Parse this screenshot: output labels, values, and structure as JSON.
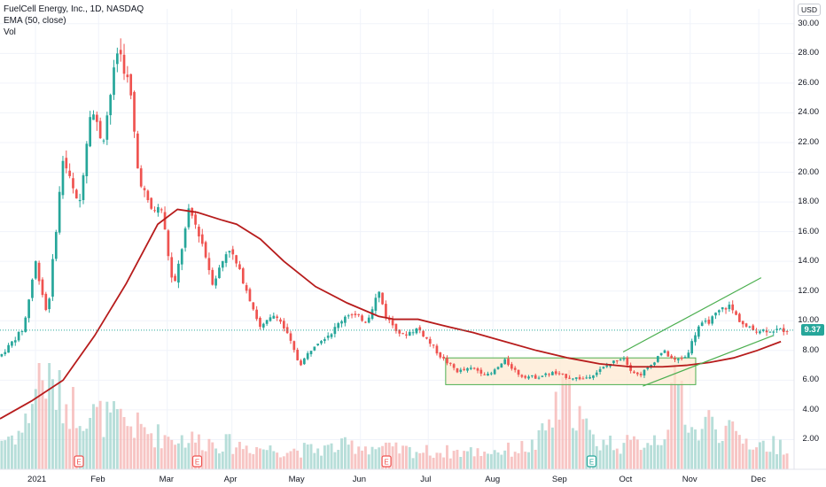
{
  "legend": {
    "symbol": "FuelCell Energy, Inc., 1D, NASDAQ",
    "indicator": "EMA (50, close)",
    "volume": "Vol"
  },
  "currency": "USD",
  "last_price": "9.37",
  "colors": {
    "up": "#26a69a",
    "down": "#ef5350",
    "ema": "#b71c1c",
    "channel": "#4caf50",
    "range_fill": "#fde8cf"
  },
  "chart_data": {
    "type": "candlestick",
    "title": "FuelCell Energy, Inc., 1D, NASDAQ",
    "y_axis": {
      "min": 0,
      "max": 31,
      "ticks": [
        "2.00",
        "4.00",
        "6.00",
        "8.00",
        "10.00",
        "12.00",
        "14.00",
        "16.00",
        "18.00",
        "20.00",
        "22.00",
        "24.00",
        "26.00",
        "28.00",
        "30.00"
      ]
    },
    "x_ticks": [
      {
        "label": "2021",
        "t": 0.045
      },
      {
        "label": "Feb",
        "t": 0.125
      },
      {
        "label": "Mar",
        "t": 0.212
      },
      {
        "label": "Apr",
        "t": 0.294
      },
      {
        "label": "May",
        "t": 0.376
      },
      {
        "label": "Jun",
        "t": 0.457
      },
      {
        "label": "Jul",
        "t": 0.543
      },
      {
        "label": "Aug",
        "t": 0.625
      },
      {
        "label": "Sep",
        "t": 0.71
      },
      {
        "label": "Oct",
        "t": 0.795
      },
      {
        "label": "Nov",
        "t": 0.875
      },
      {
        "label": "Dec",
        "t": 0.962
      }
    ],
    "price_path": [
      [
        0.0,
        7.6
      ],
      [
        0.03,
        9.5
      ],
      [
        0.045,
        14.0
      ],
      [
        0.06,
        10.3
      ],
      [
        0.08,
        21.0
      ],
      [
        0.1,
        17.5
      ],
      [
        0.115,
        24.5
      ],
      [
        0.13,
        22.0
      ],
      [
        0.15,
        28.5
      ],
      [
        0.165,
        25.5
      ],
      [
        0.175,
        20.0
      ],
      [
        0.19,
        17.5
      ],
      [
        0.205,
        17.5
      ],
      [
        0.22,
        12.0
      ],
      [
        0.24,
        17.5
      ],
      [
        0.255,
        15.5
      ],
      [
        0.27,
        12.5
      ],
      [
        0.29,
        15.0
      ],
      [
        0.31,
        12.5
      ],
      [
        0.33,
        9.5
      ],
      [
        0.35,
        10.5
      ],
      [
        0.365,
        9.0
      ],
      [
        0.38,
        7.0
      ],
      [
        0.4,
        8.5
      ],
      [
        0.42,
        9.2
      ],
      [
        0.44,
        10.5
      ],
      [
        0.465,
        10.0
      ],
      [
        0.48,
        12.0
      ],
      [
        0.49,
        10.2
      ],
      [
        0.51,
        9.0
      ],
      [
        0.53,
        9.5
      ],
      [
        0.56,
        7.5
      ],
      [
        0.58,
        6.6
      ],
      [
        0.6,
        6.8
      ],
      [
        0.62,
        6.3
      ],
      [
        0.64,
        7.3
      ],
      [
        0.66,
        6.3
      ],
      [
        0.68,
        6.2
      ],
      [
        0.7,
        6.5
      ],
      [
        0.72,
        6.2
      ],
      [
        0.74,
        6.1
      ],
      [
        0.755,
        6.5
      ],
      [
        0.77,
        7.0
      ],
      [
        0.79,
        7.6
      ],
      [
        0.8,
        6.7
      ],
      [
        0.81,
        6.3
      ],
      [
        0.825,
        7.0
      ],
      [
        0.84,
        8.0
      ],
      [
        0.855,
        7.3
      ],
      [
        0.87,
        7.6
      ],
      [
        0.885,
        9.6
      ],
      [
        0.9,
        10.0
      ],
      [
        0.915,
        10.8
      ],
      [
        0.925,
        11.0
      ],
      [
        0.935,
        10.2
      ],
      [
        0.945,
        9.6
      ],
      [
        0.955,
        9.37
      ]
    ],
    "ema_path": [
      [
        0.0,
        3.4
      ],
      [
        0.04,
        4.6
      ],
      [
        0.08,
        6.0
      ],
      [
        0.12,
        9.0
      ],
      [
        0.16,
        12.5
      ],
      [
        0.2,
        16.5
      ],
      [
        0.225,
        17.5
      ],
      [
        0.25,
        17.3
      ],
      [
        0.28,
        16.8
      ],
      [
        0.3,
        16.5
      ],
      [
        0.33,
        15.5
      ],
      [
        0.36,
        14.0
      ],
      [
        0.4,
        12.3
      ],
      [
        0.44,
        11.2
      ],
      [
        0.48,
        10.3
      ],
      [
        0.5,
        10.1
      ],
      [
        0.53,
        10.1
      ],
      [
        0.56,
        9.7
      ],
      [
        0.6,
        9.2
      ],
      [
        0.64,
        8.6
      ],
      [
        0.68,
        8.0
      ],
      [
        0.72,
        7.5
      ],
      [
        0.76,
        7.1
      ],
      [
        0.8,
        6.9
      ],
      [
        0.84,
        6.9
      ],
      [
        0.87,
        7.0
      ],
      [
        0.9,
        7.2
      ],
      [
        0.93,
        7.5
      ],
      [
        0.96,
        8.0
      ],
      [
        0.99,
        8.6
      ]
    ],
    "volume_path": [
      [
        0.0,
        0.3
      ],
      [
        0.03,
        0.4
      ],
      [
        0.05,
        1.0
      ],
      [
        0.08,
        0.7
      ],
      [
        0.12,
        0.55
      ],
      [
        0.15,
        0.5
      ],
      [
        0.2,
        0.35
      ],
      [
        0.25,
        0.3
      ],
      [
        0.3,
        0.25
      ],
      [
        0.35,
        0.2
      ],
      [
        0.4,
        0.2
      ],
      [
        0.45,
        0.25
      ],
      [
        0.5,
        0.2
      ],
      [
        0.55,
        0.18
      ],
      [
        0.6,
        0.18
      ],
      [
        0.65,
        0.2
      ],
      [
        0.68,
        0.25
      ],
      [
        0.72,
        0.8
      ],
      [
        0.75,
        0.3
      ],
      [
        0.8,
        0.25
      ],
      [
        0.84,
        0.35
      ],
      [
        0.86,
        0.9
      ],
      [
        0.88,
        0.35
      ],
      [
        0.9,
        0.5
      ],
      [
        0.93,
        0.35
      ],
      [
        0.96,
        0.25
      ]
    ],
    "last_price": 9.37,
    "annotations": {
      "range_box": {
        "t0": 0.565,
        "t1": 0.882,
        "y0": 5.7,
        "y1": 7.5
      },
      "channel_upper": [
        [
          0.79,
          7.9
        ],
        [
          0.965,
          12.9
        ]
      ],
      "channel_lower": [
        [
          0.815,
          5.6
        ],
        [
          0.98,
          9.0
        ]
      ],
      "earnings_markers": [
        {
          "t": 0.1,
          "label": "E",
          "color": "down"
        },
        {
          "t": 0.25,
          "label": "E",
          "color": "down"
        },
        {
          "t": 0.49,
          "label": "E",
          "color": "down"
        },
        {
          "t": 0.75,
          "label": "E",
          "color": "up"
        }
      ]
    }
  }
}
